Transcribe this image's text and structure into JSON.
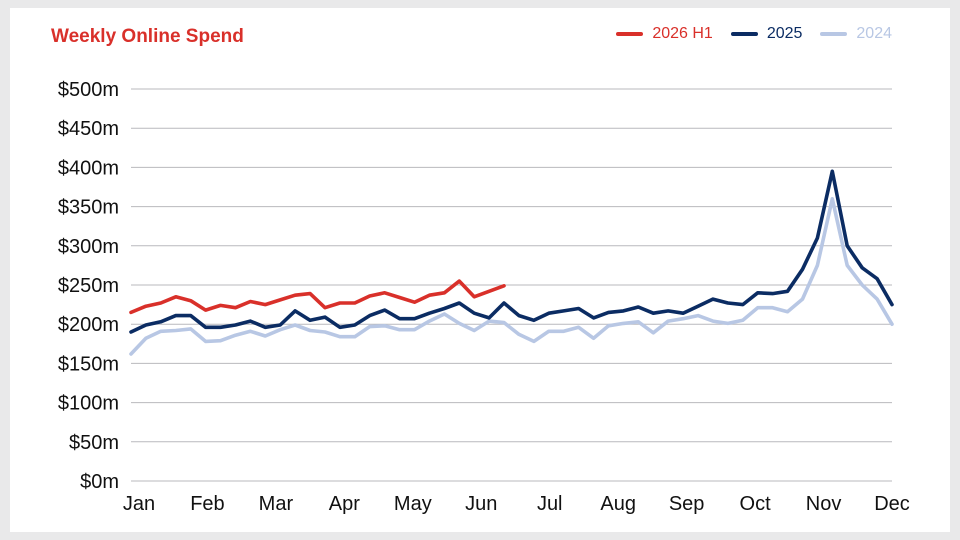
{
  "chart_data": {
    "type": "line",
    "title": "Weekly Online Spend",
    "xlabel": "",
    "ylabel": "",
    "ylim": [
      0,
      500
    ],
    "yticks": [
      {
        "value": 500,
        "label": "$500m"
      },
      {
        "value": 450,
        "label": "$450m"
      },
      {
        "value": 400,
        "label": "$400m"
      },
      {
        "value": 350,
        "label": "$350m"
      },
      {
        "value": 300,
        "label": "$300m"
      },
      {
        "value": 250,
        "label": "$250m"
      },
      {
        "value": 200,
        "label": "$200m"
      },
      {
        "value": 150,
        "label": "$150m"
      },
      {
        "value": 100,
        "label": "$100m"
      },
      {
        "value": 50,
        "label": "$50m"
      },
      {
        "value": 0,
        "label": "$0m"
      }
    ],
    "months": [
      "Jan",
      "Feb",
      "Mar",
      "Apr",
      "May",
      "Jun",
      "Jul",
      "Aug",
      "Sep",
      "Oct",
      "Nov",
      "Dec"
    ],
    "grid": true,
    "legend_position": "top-right",
    "series": [
      {
        "name": "2026 H1",
        "color": "#d9302a",
        "values": [
          215,
          223,
          227,
          235,
          230,
          218,
          224,
          221,
          229,
          225,
          231,
          237,
          239,
          221,
          227,
          227,
          236,
          240,
          234,
          228,
          237,
          240,
          255,
          235,
          242,
          249
        ]
      },
      {
        "name": "2025",
        "color": "#0b2c63",
        "values": [
          190,
          199,
          203,
          211,
          211,
          196,
          196,
          199,
          204,
          196,
          199,
          217,
          205,
          209,
          196,
          199,
          211,
          218,
          207,
          207,
          214,
          220,
          227,
          214,
          208,
          227,
          211,
          205,
          214,
          217,
          220,
          208,
          215,
          217,
          222,
          214,
          217,
          214,
          223,
          232,
          227,
          225,
          240,
          239,
          242,
          270,
          310,
          395,
          300,
          272,
          258,
          225
        ]
      },
      {
        "name": "2024",
        "color": "#b8c7e4",
        "values": [
          162,
          182,
          191,
          192,
          194,
          178,
          179,
          186,
          191,
          185,
          193,
          199,
          192,
          190,
          184,
          184,
          197,
          198,
          193,
          193,
          204,
          213,
          201,
          192,
          204,
          202,
          187,
          178,
          191,
          191,
          196,
          182,
          198,
          201,
          203,
          189,
          204,
          207,
          211,
          204,
          201,
          205,
          221,
          221,
          216,
          232,
          275,
          360,
          275,
          250,
          232,
          200
        ]
      }
    ]
  }
}
